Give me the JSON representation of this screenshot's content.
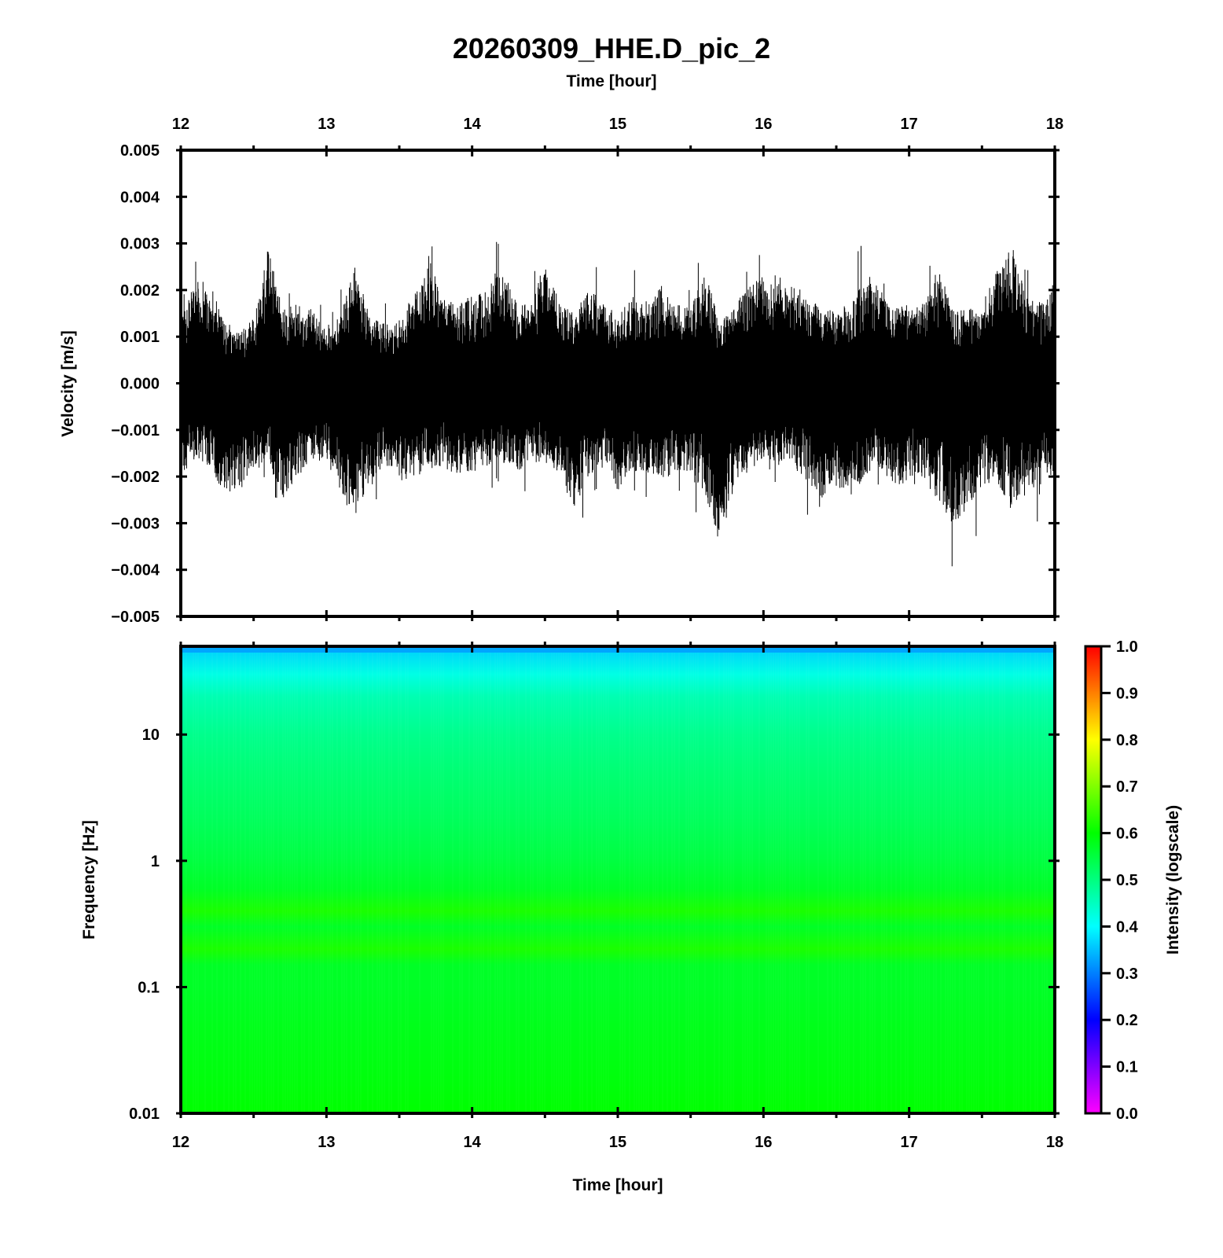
{
  "chart_data": [
    {
      "type": "line",
      "title": "20260309_HHE.D_pic_2",
      "top_xlabel": "Time [hour]",
      "ylabel": "Velocity [m/s]",
      "x_ticks": [
        "12",
        "13",
        "14",
        "15",
        "16",
        "17",
        "18"
      ],
      "y_ticks": [
        "0.005",
        "0.004",
        "0.003",
        "0.002",
        "0.001",
        "0.000",
        "−0.001",
        "−0.002",
        "−0.003",
        "−0.004",
        "−0.005"
      ],
      "xlim": [
        12,
        18
      ],
      "ylim": [
        -0.005,
        0.005
      ],
      "series": [
        {
          "x": [
            12.0,
            12.1,
            12.2,
            12.3,
            12.4,
            12.5,
            12.6,
            12.7,
            12.8,
            12.9,
            13.0,
            13.1,
            13.2,
            13.3,
            13.4,
            13.5,
            13.6,
            13.7,
            13.8,
            13.9,
            14.0,
            14.1,
            14.2,
            14.3,
            14.4,
            14.5,
            14.6,
            14.7,
            14.8,
            14.9,
            15.0,
            15.1,
            15.2,
            15.3,
            15.4,
            15.5,
            15.6,
            15.7,
            15.8,
            15.9,
            16.0,
            16.1,
            16.2,
            16.3,
            16.4,
            16.5,
            16.6,
            16.7,
            16.8,
            16.9,
            17.0,
            17.1,
            17.2,
            17.3,
            17.4,
            17.5,
            17.6,
            17.7,
            17.8,
            17.9,
            18.0
          ],
          "y_max": [
            0.0015,
            0.0022,
            0.0022,
            0.0013,
            0.0011,
            0.0014,
            0.003,
            0.0016,
            0.0017,
            0.0016,
            0.0011,
            0.0015,
            0.0026,
            0.0014,
            0.0013,
            0.0014,
            0.0019,
            0.0028,
            0.0018,
            0.0017,
            0.0019,
            0.002,
            0.0025,
            0.0018,
            0.0016,
            0.0027,
            0.0017,
            0.0015,
            0.0021,
            0.0017,
            0.0014,
            0.002,
            0.0017,
            0.0021,
            0.0017,
            0.0016,
            0.0024,
            0.0013,
            0.0017,
            0.0021,
            0.0023,
            0.0021,
            0.0022,
            0.0019,
            0.0016,
            0.0016,
            0.0017,
            0.0025,
            0.002,
            0.0016,
            0.0018,
            0.0017,
            0.0025,
            0.0016,
            0.0016,
            0.0017,
            0.0024,
            0.0031,
            0.0019,
            0.0017,
            0.0022
          ],
          "y_min": [
            -0.002,
            -0.0016,
            -0.0018,
            -0.0024,
            -0.0022,
            -0.002,
            -0.0017,
            -0.0025,
            -0.002,
            -0.0018,
            -0.0016,
            -0.0025,
            -0.0028,
            -0.0021,
            -0.0018,
            -0.0021,
            -0.002,
            -0.0019,
            -0.0018,
            -0.002,
            -0.0019,
            -0.0018,
            -0.0017,
            -0.0019,
            -0.0018,
            -0.0016,
            -0.002,
            -0.0027,
            -0.002,
            -0.0017,
            -0.0023,
            -0.0019,
            -0.0019,
            -0.0021,
            -0.0019,
            -0.0019,
            -0.0024,
            -0.0035,
            -0.0022,
            -0.0019,
            -0.0016,
            -0.0017,
            -0.0018,
            -0.0021,
            -0.0025,
            -0.0022,
            -0.0024,
            -0.002,
            -0.0019,
            -0.0024,
            -0.002,
            -0.0021,
            -0.0025,
            -0.0031,
            -0.0028,
            -0.0022,
            -0.0021,
            -0.0028,
            -0.0024,
            -0.0022,
            -0.002
          ]
        }
      ]
    },
    {
      "type": "heatmap",
      "xlabel": "Time [hour]",
      "ylabel": "Frequency [Hz]",
      "colorbar_label": "Intensity (logscale)",
      "x_ticks": [
        "12",
        "13",
        "14",
        "15",
        "16",
        "17",
        "18"
      ],
      "y_ticks": [
        "10",
        "1",
        "0.1",
        "0.01"
      ],
      "y_scale": "log",
      "xlim": [
        12,
        18
      ],
      "ylim": [
        0.01,
        50
      ],
      "colorbar_ticks": [
        "1.0",
        "0.9",
        "0.8",
        "0.7",
        "0.6",
        "0.5",
        "0.4",
        "0.3",
        "0.2",
        "0.1",
        "0.0"
      ],
      "clim": [
        0.0,
        1.0
      ],
      "colormap": [
        "#ff00ff",
        "#0000ff",
        "#00ffff",
        "#00ff00",
        "#ffff00",
        "#ff0000"
      ],
      "frequency_profile": {
        "frequency_hz": [
          50,
          30,
          20,
          10,
          5,
          2,
          1,
          0.6,
          0.4,
          0.3,
          0.2,
          0.15,
          0.1,
          0.05,
          0.02,
          0.01
        ],
        "intensity": [
          0.36,
          0.42,
          0.46,
          0.49,
          0.51,
          0.53,
          0.55,
          0.57,
          0.62,
          0.57,
          0.62,
          0.57,
          0.57,
          0.58,
          0.59,
          0.6
        ]
      }
    }
  ]
}
